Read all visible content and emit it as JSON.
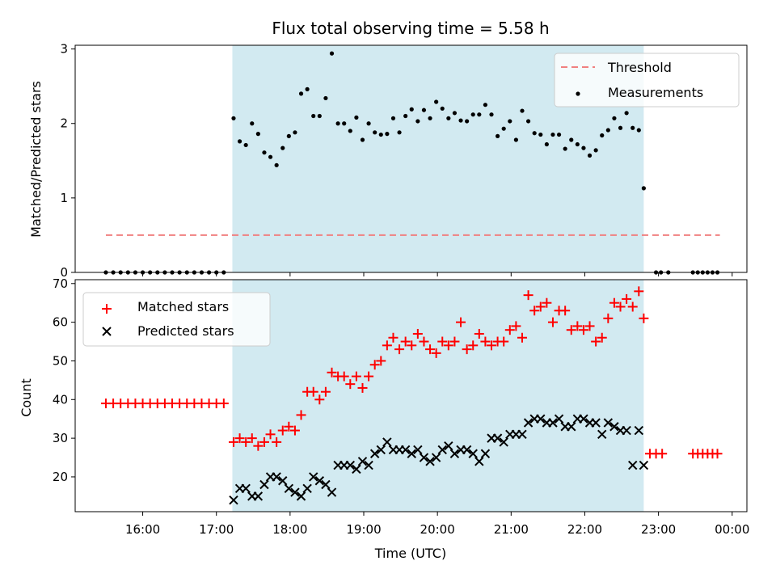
{
  "chart_data": [
    {
      "type": "scatter",
      "title": "Flux total observing time = 5.58 h",
      "xlabel": "",
      "ylabel": "Matched/Predicted stars",
      "ylim": [
        0,
        3.05
      ],
      "yticks": [
        0,
        1,
        2,
        3
      ],
      "threshold": {
        "name": "Threshold",
        "value": 0.5,
        "x_start": "15:30",
        "x_end": "23:50",
        "color": "#f08080"
      },
      "shaded_interval": {
        "start": "17:13",
        "end": "22:48",
        "color": "#add8e6"
      },
      "legend": {
        "position": "top-right",
        "entries": [
          "Threshold",
          "Measurements"
        ]
      },
      "series": [
        {
          "name": "Measurements",
          "color": "#000000",
          "marker": "dot",
          "x": [
            "15:30",
            "15:36",
            "15:42",
            "15:48",
            "15:54",
            "16:00",
            "16:06",
            "16:12",
            "16:18",
            "16:24",
            "16:30",
            "16:36",
            "16:42",
            "16:48",
            "16:54",
            "17:00",
            "17:06",
            "17:14",
            "17:19",
            "17:24",
            "17:29",
            "17:34",
            "17:39",
            "17:44",
            "17:49",
            "17:54",
            "17:59",
            "18:04",
            "18:09",
            "18:14",
            "18:19",
            "18:24",
            "18:29",
            "18:34",
            "18:39",
            "18:44",
            "18:49",
            "18:54",
            "18:59",
            "19:04",
            "19:09",
            "19:14",
            "19:19",
            "19:24",
            "19:29",
            "19:34",
            "19:39",
            "19:44",
            "19:49",
            "19:54",
            "19:59",
            "20:04",
            "20:09",
            "20:14",
            "20:19",
            "20:24",
            "20:29",
            "20:34",
            "20:39",
            "20:44",
            "20:49",
            "20:54",
            "20:59",
            "21:04",
            "21:09",
            "21:14",
            "21:19",
            "21:24",
            "21:29",
            "21:34",
            "21:39",
            "21:44",
            "21:49",
            "21:54",
            "21:59",
            "22:04",
            "22:09",
            "22:14",
            "22:19",
            "22:24",
            "22:29",
            "22:34",
            "22:39",
            "22:44",
            "22:48",
            "22:58",
            "23:02",
            "23:08",
            "23:28",
            "23:32",
            "23:36",
            "23:40",
            "23:44",
            "23:48"
          ],
          "y": [
            0,
            0,
            0,
            0,
            0,
            0,
            0,
            0,
            0,
            0,
            0,
            0,
            0,
            0,
            0,
            0,
            0,
            2.07,
            1.76,
            1.71,
            2.0,
            1.86,
            1.61,
            1.55,
            1.44,
            1.67,
            1.83,
            1.88,
            2.4,
            2.46,
            2.1,
            2.1,
            2.34,
            2.94,
            2.0,
            2.0,
            1.9,
            2.08,
            1.78,
            2.0,
            1.88,
            1.85,
            1.86,
            2.07,
            1.88,
            2.1,
            2.19,
            2.03,
            2.18,
            2.07,
            2.29,
            2.2,
            2.07,
            2.14,
            2.04,
            2.03,
            2.12,
            2.12,
            2.25,
            2.12,
            1.83,
            1.93,
            2.03,
            1.78,
            2.17,
            2.03,
            1.87,
            1.85,
            1.72,
            1.85,
            1.85,
            1.66,
            1.78,
            1.72,
            1.67,
            1.57,
            1.64,
            1.84,
            1.91,
            2.07,
            1.94,
            2.14,
            1.94,
            1.91,
            1.13,
            0,
            0,
            0,
            0,
            0,
            0,
            0,
            0,
            0
          ]
        }
      ]
    },
    {
      "type": "scatter",
      "title": "",
      "xlabel": "Time (UTC)",
      "ylabel": "Count",
      "ylim": [
        11,
        71
      ],
      "yticks": [
        20,
        30,
        40,
        50,
        60,
        70
      ],
      "xticks": [
        "16:00",
        "17:00",
        "18:00",
        "19:00",
        "20:00",
        "21:00",
        "22:00",
        "23:00",
        "00:00"
      ],
      "xlim": [
        "15:05",
        "00:12"
      ],
      "shaded_interval": {
        "start": "17:13",
        "end": "22:48",
        "color": "#add8e6"
      },
      "legend": {
        "position": "top-left",
        "entries": [
          "Matched stars",
          "Predicted stars"
        ]
      },
      "series": [
        {
          "name": "Matched stars",
          "color": "#ff0000",
          "marker": "plus",
          "x": [
            "15:30",
            "15:36",
            "15:42",
            "15:48",
            "15:54",
            "16:00",
            "16:06",
            "16:12",
            "16:18",
            "16:24",
            "16:30",
            "16:36",
            "16:42",
            "16:48",
            "16:54",
            "17:00",
            "17:06",
            "17:14",
            "17:19",
            "17:24",
            "17:29",
            "17:34",
            "17:39",
            "17:44",
            "17:49",
            "17:54",
            "17:59",
            "18:04",
            "18:09",
            "18:14",
            "18:19",
            "18:24",
            "18:29",
            "18:34",
            "18:39",
            "18:44",
            "18:49",
            "18:54",
            "18:59",
            "19:04",
            "19:09",
            "19:14",
            "19:19",
            "19:24",
            "19:29",
            "19:34",
            "19:39",
            "19:44",
            "19:49",
            "19:54",
            "19:59",
            "20:04",
            "20:09",
            "20:14",
            "20:19",
            "20:24",
            "20:29",
            "20:34",
            "20:39",
            "20:44",
            "20:49",
            "20:54",
            "20:59",
            "21:04",
            "21:09",
            "21:14",
            "21:19",
            "21:24",
            "21:29",
            "21:34",
            "21:39",
            "21:44",
            "21:49",
            "21:54",
            "21:59",
            "22:04",
            "22:09",
            "22:14",
            "22:19",
            "22:24",
            "22:29",
            "22:34",
            "22:39",
            "22:44",
            "22:48",
            "22:53",
            "22:58",
            "23:03",
            "23:28",
            "23:32",
            "23:36",
            "23:40",
            "23:44",
            "23:48"
          ],
          "y": [
            39,
            39,
            39,
            39,
            39,
            39,
            39,
            39,
            39,
            39,
            39,
            39,
            39,
            39,
            39,
            39,
            39,
            29,
            30,
            29,
            30,
            28,
            29,
            31,
            29,
            32,
            33,
            32,
            36,
            42,
            42,
            40,
            42,
            47,
            46,
            46,
            44,
            46,
            43,
            46,
            49,
            50,
            54,
            56,
            53,
            55,
            54,
            57,
            55,
            53,
            52,
            55,
            54,
            55,
            60,
            53,
            54,
            57,
            55,
            54,
            55,
            55,
            58,
            59,
            56,
            67,
            63,
            64,
            65,
            60,
            63,
            63,
            58,
            59,
            58,
            59,
            55,
            56,
            61,
            65,
            64,
            66,
            64,
            68,
            61,
            26,
            26,
            26,
            26,
            26,
            26,
            26,
            26,
            26
          ]
        },
        {
          "name": "Predicted stars",
          "color": "#000000",
          "marker": "x",
          "x": [
            "17:14",
            "17:19",
            "17:24",
            "17:29",
            "17:34",
            "17:39",
            "17:44",
            "17:49",
            "17:54",
            "17:59",
            "18:04",
            "18:09",
            "18:14",
            "18:19",
            "18:24",
            "18:29",
            "18:34",
            "18:39",
            "18:44",
            "18:49",
            "18:54",
            "18:59",
            "19:04",
            "19:09",
            "19:14",
            "19:19",
            "19:24",
            "19:29",
            "19:34",
            "19:39",
            "19:44",
            "19:49",
            "19:54",
            "19:59",
            "20:04",
            "20:09",
            "20:14",
            "20:19",
            "20:24",
            "20:29",
            "20:34",
            "20:39",
            "20:44",
            "20:49",
            "20:54",
            "20:59",
            "21:04",
            "21:09",
            "21:14",
            "21:19",
            "21:24",
            "21:29",
            "21:34",
            "21:39",
            "21:44",
            "21:49",
            "21:54",
            "21:59",
            "22:04",
            "22:09",
            "22:14",
            "22:19",
            "22:24",
            "22:29",
            "22:34",
            "22:39",
            "22:44",
            "22:48"
          ],
          "y": [
            14,
            17,
            17,
            15,
            15,
            18,
            20,
            20,
            19,
            17,
            16,
            15,
            17,
            20,
            19,
            18,
            16,
            23,
            23,
            23,
            22,
            24,
            23,
            26,
            27,
            29,
            27,
            27,
            27,
            26,
            27,
            25,
            24,
            25,
            27,
            28,
            26,
            27,
            27,
            26,
            24,
            26,
            30,
            30,
            29,
            31,
            31,
            31,
            34,
            35,
            35,
            34,
            34,
            35,
            33,
            33,
            35,
            35,
            34,
            34,
            31,
            34,
            33,
            32,
            32,
            23,
            32,
            23
          ]
        }
      ]
    }
  ]
}
